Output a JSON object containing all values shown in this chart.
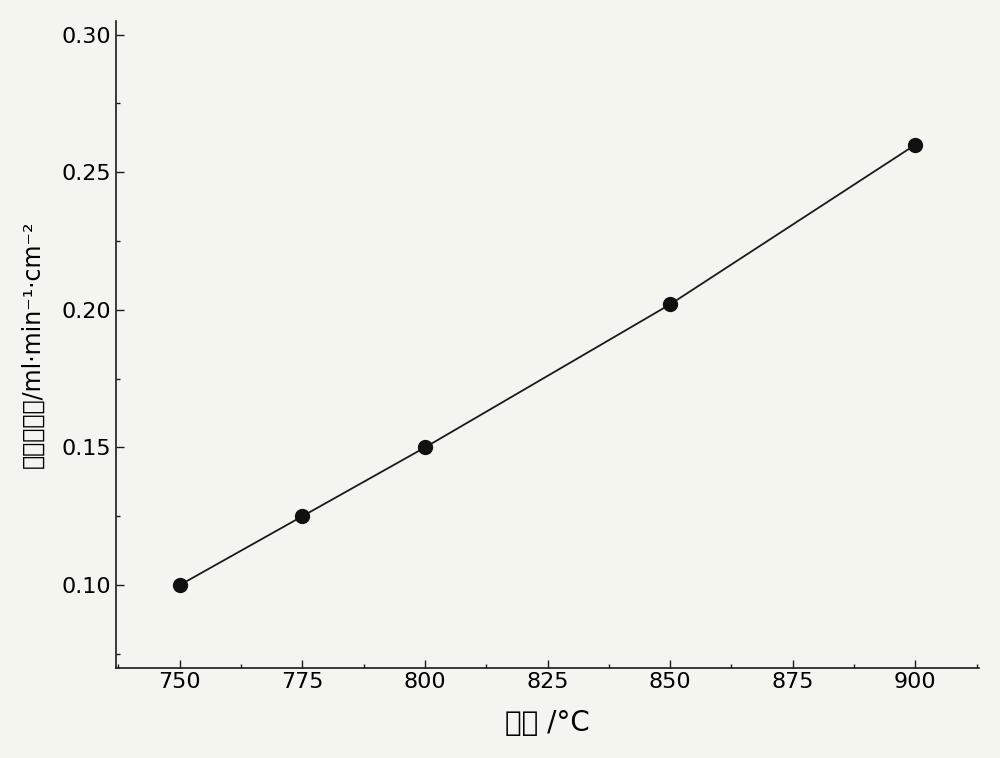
{
  "x": [
    750,
    775,
    800,
    850,
    900
  ],
  "y": [
    0.1,
    0.125,
    0.15,
    0.202,
    0.26
  ],
  "xlabel": "温度 /°C",
  "ylabel": "氧渗透通量/ml·min⁻¹·cm⁻²",
  "xlim": [
    737,
    913
  ],
  "ylim": [
    0.07,
    0.305
  ],
  "xticks": [
    750,
    775,
    800,
    825,
    850,
    875,
    900
  ],
  "yticks": [
    0.1,
    0.15,
    0.2,
    0.25,
    0.3
  ],
  "line_color": "#1a1a1a",
  "marker_color": "#111111",
  "marker_size": 10,
  "line_width": 1.3,
  "background_color": "#f5f5f0",
  "xlabel_fontsize": 20,
  "ylabel_fontsize": 17,
  "tick_fontsize": 16
}
